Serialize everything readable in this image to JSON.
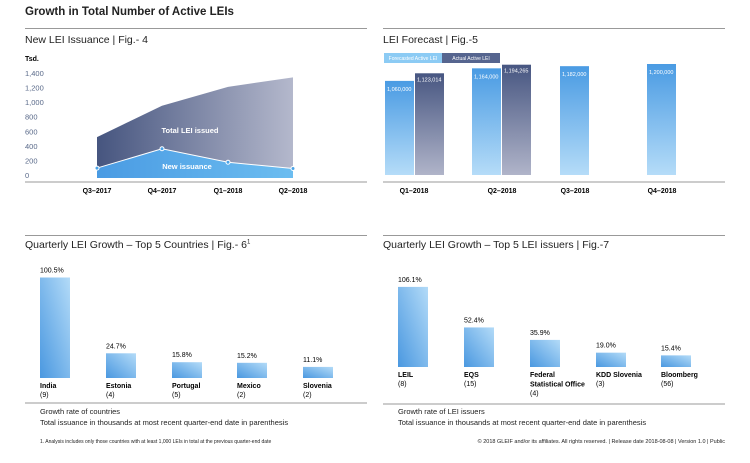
{
  "page": {
    "title": "Growth in Total Number of Active LEIs",
    "copyright": "© 2018 GLEIF and/or its affiliates. All rights reserved.  |  Release date 2018-08-08  |  Version 1.0  |  Public",
    "footnote": "1. Analysis includes only those countries with at least 1,000 LEIs in total at the previous quarter-end date"
  },
  "chart_data": [
    {
      "id": "fig4",
      "type": "area",
      "title": "New LEI Issuance  |  Fig.- 4",
      "ylabel": "Tsd.",
      "ylim": [
        0,
        1400
      ],
      "yticks": [
        "1,400",
        "1,200",
        "1,000",
        "800",
        "600",
        "400",
        "200",
        "0"
      ],
      "categories": [
        "Q3–2017",
        "Q4–2017",
        "Q1–2018",
        "Q2–2018"
      ],
      "series": [
        {
          "name": "Total LEI issued",
          "values": [
            520,
            950,
            1210,
            1340
          ],
          "color": "#4a5a84"
        },
        {
          "name": "New issuance",
          "values": [
            95,
            360,
            175,
            90
          ],
          "color": "#4aa3e8"
        }
      ]
    },
    {
      "id": "fig5",
      "type": "bar",
      "title": "LEI Forecast  |  Fig.-5",
      "categories": [
        "Q1–2018",
        "Q2–2018",
        "Q3–2018",
        "Q4–2018"
      ],
      "legend": [
        "Forecasted Active LEI",
        "Actual Active LEI"
      ],
      "series": [
        {
          "name": "Forecasted Active LEI",
          "values": [
            1060000,
            1164000,
            1182000,
            1200000
          ],
          "labels": [
            "1,060,000",
            "1,164,000",
            "1,182,000",
            "1,200,000"
          ],
          "color": "#4aa3e8"
        },
        {
          "name": "Actual Active LEI",
          "values": [
            1123014,
            1194265,
            null,
            null
          ],
          "labels": [
            "1,123,014",
            "1,194,265",
            "",
            ""
          ],
          "color": "#4a5a84"
        }
      ]
    },
    {
      "id": "fig6",
      "type": "bar",
      "title": "Quarterly LEI Growth – Top 5 Countries  |  Fig.- 6",
      "title_sup": "1",
      "categories": [
        "India",
        "Estonia",
        "Portugal",
        "Mexico",
        "Slovenia"
      ],
      "counts": [
        "(9)",
        "(4)",
        "(5)",
        "(2)",
        "(2)"
      ],
      "values": [
        100.5,
        24.7,
        15.8,
        15.2,
        11.1
      ],
      "labels": [
        "100.5%",
        "24.7%",
        "15.8%",
        "15.2%",
        "11.1%"
      ],
      "caption": [
        "Growth rate of countries",
        "Total issuance in thousands at most recent quarter-end date in parenthesis"
      ]
    },
    {
      "id": "fig7",
      "type": "bar",
      "title": "Quarterly LEI Growth – Top 5 LEI issuers  |  Fig.-7",
      "categories": [
        "LEIL",
        "EQS",
        "Federal Statistical Office",
        "KDD Slovenia",
        "Bloomberg"
      ],
      "counts": [
        "(8)",
        "(15)",
        "(4)",
        "(3)",
        "(56)"
      ],
      "values": [
        106.1,
        52.4,
        35.9,
        19.0,
        15.4
      ],
      "labels": [
        "106.1%",
        "52.4%",
        "35.9%",
        "19.0%",
        "15.4%"
      ],
      "caption": [
        "Growth rate of LEI issuers",
        "Total issuance in thousands at most recent quarter-end date in parenthesis"
      ]
    }
  ]
}
